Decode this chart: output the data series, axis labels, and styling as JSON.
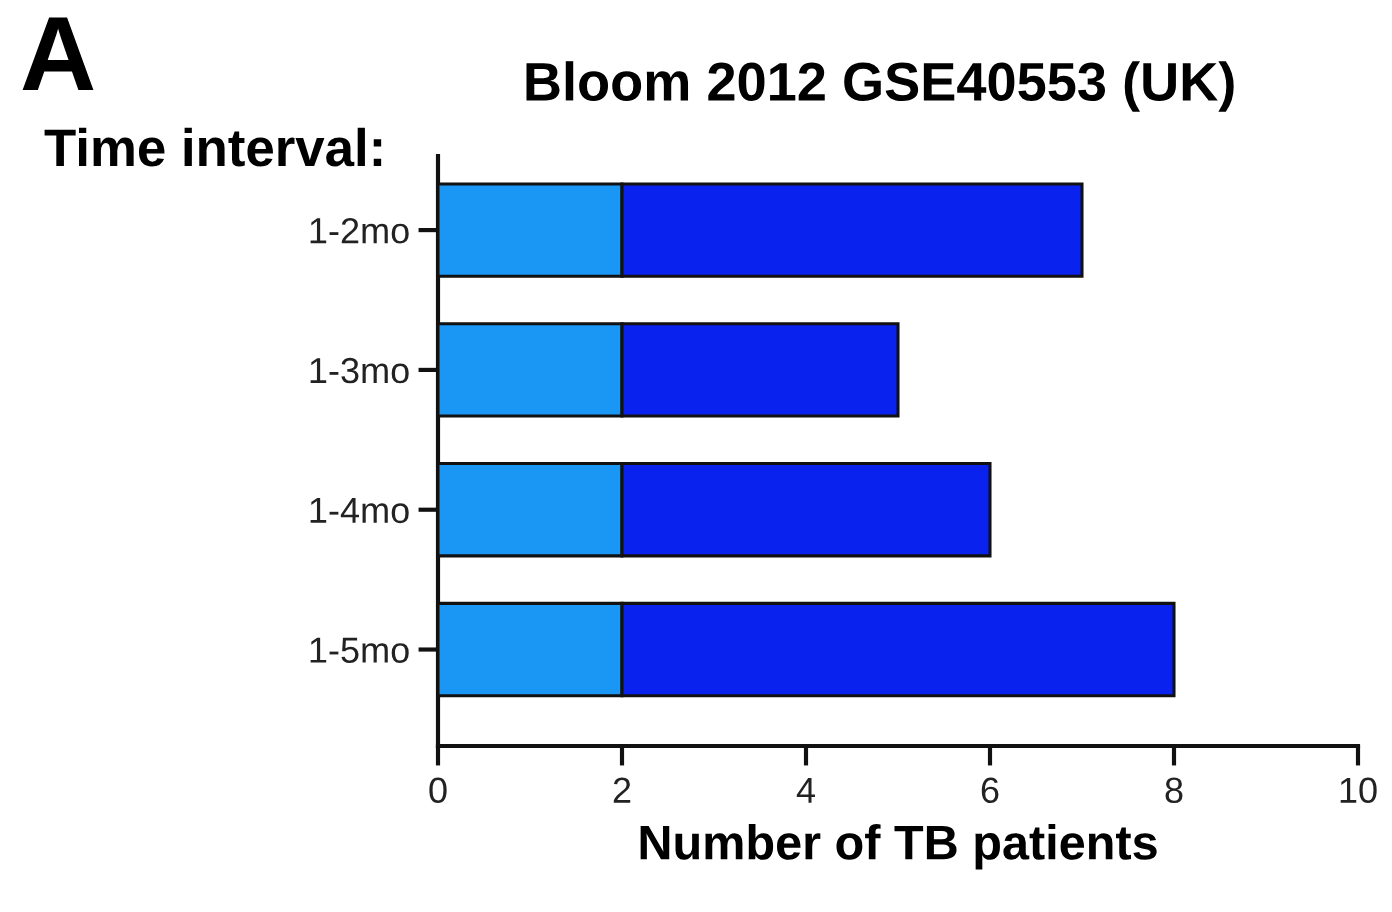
{
  "chart_data": {
    "type": "bar",
    "orientation": "horizontal",
    "stacked": true,
    "title": "Bloom 2012 GSE40553 (UK)",
    "xlabel": "Number of TB patients",
    "ylabel": "Time interval:",
    "annotations": [
      "A"
    ],
    "categories": [
      "1-2mo",
      "1-3mo",
      "1-4mo",
      "1-5mo"
    ],
    "series": [
      {
        "color": "#1a96f5",
        "values": [
          2,
          2,
          2,
          2
        ]
      },
      {
        "color": "#0a22ee",
        "values": [
          5,
          3,
          4,
          6
        ]
      }
    ],
    "xlim": [
      0,
      10
    ],
    "xticks": [
      0,
      2,
      4,
      6,
      8,
      10
    ],
    "grid": false,
    "legend": false
  }
}
